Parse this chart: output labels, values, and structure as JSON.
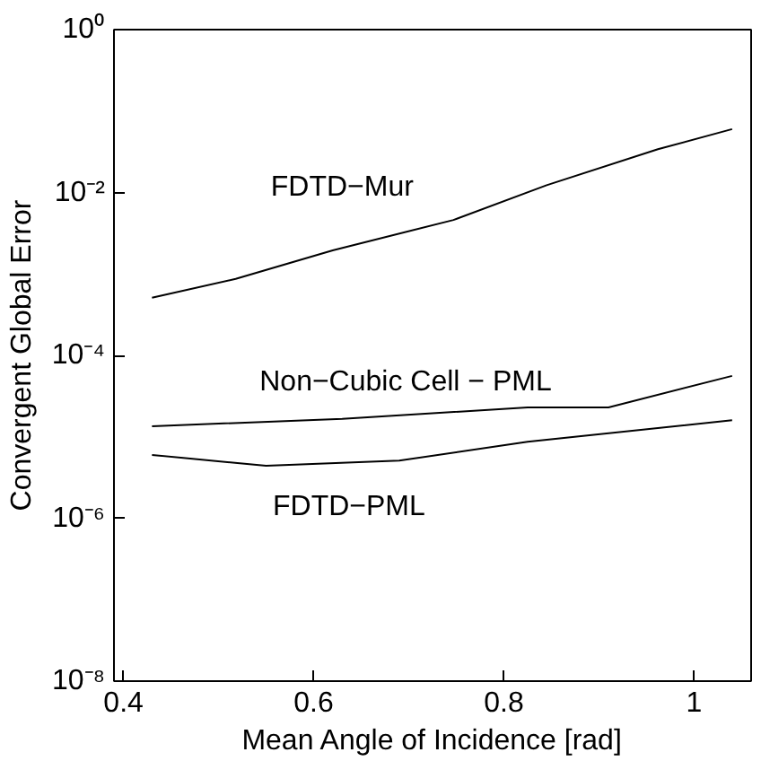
{
  "chart_data": {
    "type": "line",
    "xlabel": "Mean Angle of Incidence [rad]",
    "ylabel": "Convergent Global Error",
    "log": "y",
    "grid": false,
    "line_style": "solid",
    "marker": "none",
    "xlim": [
      0.39,
      1.06
    ],
    "xticks": [
      0.4,
      0.6,
      0.8,
      {
        "value": 1,
        "label": "1"
      }
    ],
    "ylim": [
      1e-08,
      1
    ],
    "yticks": [
      {
        "value": 1e-08,
        "label": "10⁻⁸"
      },
      {
        "value": 1e-06,
        "label": "10⁻⁶"
      },
      {
        "value": 0.0001,
        "label": "10⁻⁴"
      },
      {
        "value": 0.01,
        "label": "10⁻²"
      },
      {
        "value": 1,
        "label": "10⁰"
      }
    ],
    "series": [
      {
        "name": "FDTD−Mur",
        "color": "#000000",
        "x": [
          0.43,
          0.518,
          0.62,
          0.747,
          0.845,
          0.962,
          1.04
        ],
        "values": [
          0.00051,
          0.00087,
          0.00195,
          0.0046,
          0.0123,
          0.034,
          0.06
        ]
      },
      {
        "name": "Non−Cubic Cell − PML",
        "color": "#000000",
        "x": [
          0.43,
          0.63,
          0.825,
          0.91,
          1.04
        ],
        "values": [
          1.35e-05,
          1.66e-05,
          2.3e-05,
          2.3e-05,
          5.6e-05
        ]
      },
      {
        "name": "FDTD−PML",
        "color": "#000000",
        "x": [
          0.43,
          0.55,
          0.69,
          0.825,
          1.04
        ],
        "values": [
          6e-06,
          4.4e-06,
          5.1e-06,
          8.7e-06,
          1.6e-05
        ]
      }
    ]
  }
}
